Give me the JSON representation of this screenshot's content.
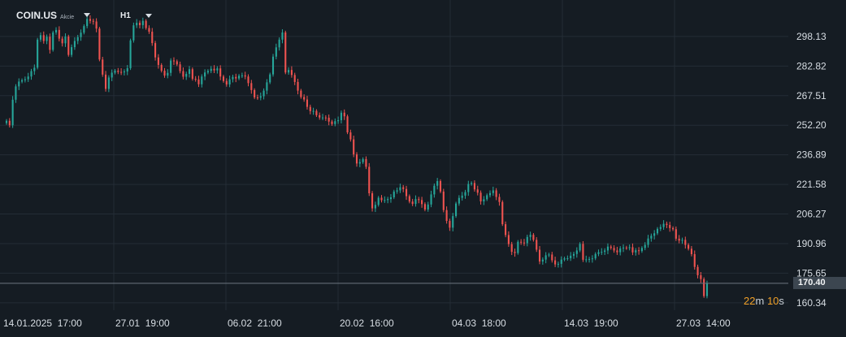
{
  "header": {
    "symbol": "COIN.US",
    "symbol_type": "Akcie",
    "timeframe": "H1"
  },
  "countdown": {
    "minutes": "22",
    "minutes_unit": "m",
    "seconds": "10",
    "seconds_unit": "s"
  },
  "colors": {
    "background": "#151c23",
    "grid": "#242d36",
    "up": "#26a69a",
    "down": "#ef5350",
    "price_line": "#6c7680",
    "axis_text": "#d7dde3"
  },
  "chart_data": {
    "type": "candlestick",
    "y_ticks": [
      298.13,
      282.82,
      267.51,
      252.2,
      236.89,
      221.58,
      206.27,
      190.96,
      175.65,
      160.34
    ],
    "ylim": [
      156.5,
      317
    ],
    "x_tick_labels": [
      "14.01.2025  17:00",
      "27.01  19:00",
      "06.02  21:00",
      "20.02  16:00",
      "04.03  18:00",
      "14.03  19:00",
      "27.03  14:00"
    ],
    "last_price": "170.40",
    "grid": true,
    "series": [
      {
        "values": [
          254.5,
          252.2,
          265.4,
          272.3,
          274.8,
          275.5,
          276.0,
          277.4,
          280.2,
          282.0,
          296.5,
          298.8,
          295.8,
          298.0,
          291.2,
          300.2,
          301.5,
          297.0,
          294.6,
          298.1,
          288.6,
          292.6,
          295.8,
          297.8,
          300.1,
          303.5,
          307.2,
          306.2,
          305.9,
          302.2,
          286.2,
          278.4,
          271.0,
          276.9,
          279.4,
          280.4,
          279.8,
          279.6,
          280.0,
          281.7,
          296.1,
          303.9,
          305.2,
          304.0,
          306.2,
          302.5,
          300.6,
          294.7,
          287.3,
          283.4,
          280.4,
          277.9,
          279.3,
          285.7,
          285.3,
          283.7,
          280.2,
          277.3,
          278.8,
          281.2,
          276.2,
          275.9,
          273.4,
          277.4,
          279.5,
          280.3,
          281.4,
          280.6,
          281.6,
          277.4,
          275.1,
          273.3,
          276.0,
          277.2,
          276.4,
          277.8,
          278.0,
          277.4,
          274.0,
          270.4,
          266.6,
          266.5,
          267.2,
          270.1,
          274.4,
          278.5,
          287.7,
          292.5,
          296.5,
          300.2,
          279.5,
          280.8,
          278.2,
          274.6,
          270.1,
          266.8,
          265.5,
          261.7,
          259.5,
          259.6,
          257.4,
          256.2,
          256.2,
          256.1,
          254.1,
          252.8,
          254.3,
          254.8,
          258.7,
          256.8,
          248.5,
          244.9,
          237.1,
          232.4,
          233.1,
          234.7,
          230.7,
          217.0,
          209.2,
          211.0,
          214.7,
          213.4,
          213.5,
          214.0,
          214.9,
          217.9,
          218.5,
          220.1,
          219.2,
          215.5,
          212.7,
          211.5,
          214.0,
          213.5,
          211.4,
          208.6,
          211.2,
          216.4,
          220.9,
          223.3,
          217.9,
          208.3,
          202.7,
          199.2,
          205.2,
          211.7,
          214.6,
          215.8,
          217.6,
          221.8,
          222.3,
          219.0,
          217.3,
          212.8,
          213.9,
          216.0,
          217.1,
          218.5,
          215.1,
          212.5,
          201.0,
          195.4,
          190.7,
          186.7,
          186.1,
          191.9,
          191.5,
          191.2,
          194.4,
          195.5,
          192.9,
          187.8,
          181.7,
          182.7,
          184.9,
          185.3,
          182.3,
          180.2,
          180.5,
          182.7,
          183.3,
          183.4,
          184.7,
          185.6,
          187.4,
          190.8,
          182.6,
          182.8,
          183.0,
          183.3,
          185.6,
          186.5,
          186.7,
          187.4,
          189.4,
          188.7,
          187.4,
          186.5,
          188.5,
          188.9,
          188.6,
          189.1,
          186.4,
          187.5,
          187.1,
          188.7,
          190.3,
          193.6,
          195.0,
          196.3,
          198.6,
          199.5,
          201.2,
          200.6,
          199.0,
          198.4,
          193.5,
          192.5,
          192.9,
          190.3,
          188.3,
          185.5,
          178.9,
          174.6,
          172.6,
          163.8,
          170.4
        ]
      }
    ]
  }
}
